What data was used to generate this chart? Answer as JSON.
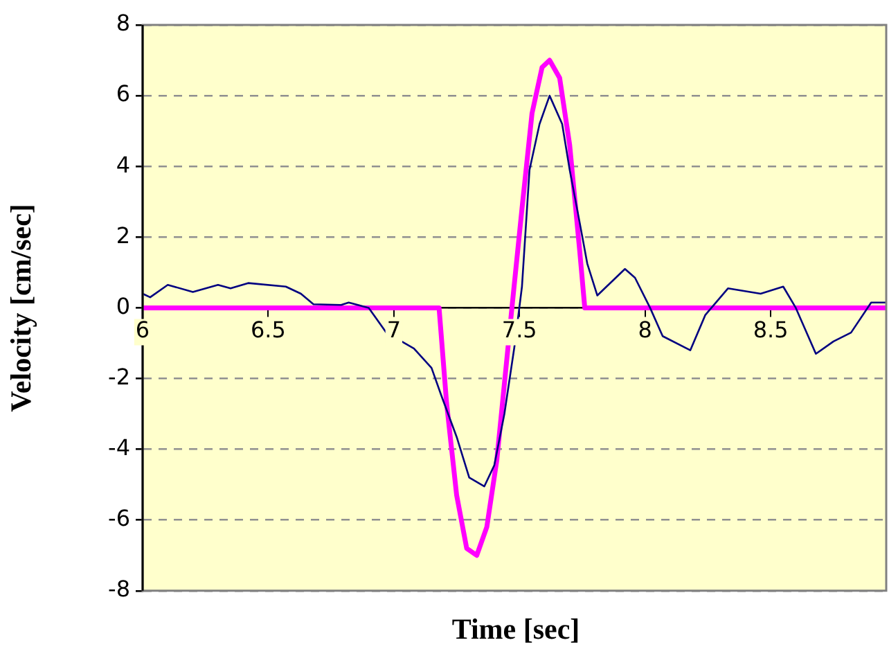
{
  "chart_data": {
    "type": "line",
    "xlabel": "Time [sec]",
    "ylabel": "Velocity [cm/sec]",
    "xlim": [
      6,
      8.96
    ],
    "xticks": [
      6,
      6.5,
      7,
      7.5,
      8,
      8.5
    ],
    "ylim": [
      -8,
      8
    ],
    "yticks": [
      -8,
      -6,
      -4,
      -2,
      0,
      2,
      4,
      6,
      8
    ],
    "grid": "y",
    "legend": false,
    "marker": "none",
    "series": [
      {
        "color": "#000080",
        "x": [
          6,
          6.03,
          6.1,
          6.2,
          6.3,
          6.35,
          6.42,
          6.57,
          6.63,
          6.68,
          6.79,
          6.82,
          6.9,
          6.93,
          6.97,
          7.08,
          7.15,
          7.19,
          7.25,
          7.3,
          7.36,
          7.4,
          7.44,
          7.48,
          7.51,
          7.54,
          7.58,
          7.62,
          7.67,
          7.7,
          7.74,
          7.77,
          7.81,
          7.92,
          7.96,
          8.02,
          8.07,
          8.18,
          8.24,
          8.33,
          8.46,
          8.55,
          8.6,
          8.68,
          8.75,
          8.82,
          8.9,
          8.96
        ],
        "values": [
          0.4,
          0.3,
          0.65,
          0.45,
          0.65,
          0.55,
          0.7,
          0.6,
          0.4,
          0.1,
          0.08,
          0.15,
          0,
          -0.3,
          -0.7,
          -1.15,
          -1.7,
          -2.5,
          -3.65,
          -4.8,
          -5.05,
          -4.45,
          -3,
          -1.1,
          0.6,
          3.9,
          5.2,
          6,
          5.2,
          3.9,
          2.4,
          1.25,
          0.35,
          1.1,
          0.85,
          0,
          -0.8,
          -1.2,
          -0.2,
          0.55,
          0.4,
          0.6,
          0,
          -1.3,
          -0.95,
          -0.7,
          0.15,
          0.15
        ]
      },
      {
        "color": "#ff00ff",
        "x": [
          6,
          7.18,
          7.21,
          7.25,
          7.29,
          7.33,
          7.37,
          7.41,
          7.47,
          7.51,
          7.55,
          7.59,
          7.62,
          7.66,
          7.7,
          7.74,
          7.76,
          8.96
        ],
        "values": [
          0,
          0,
          -2.7,
          -5.3,
          -6.8,
          -7,
          -6.2,
          -4.3,
          0,
          2.8,
          5.5,
          6.8,
          7,
          6.5,
          4.6,
          1.6,
          0,
          0
        ]
      }
    ]
  }
}
